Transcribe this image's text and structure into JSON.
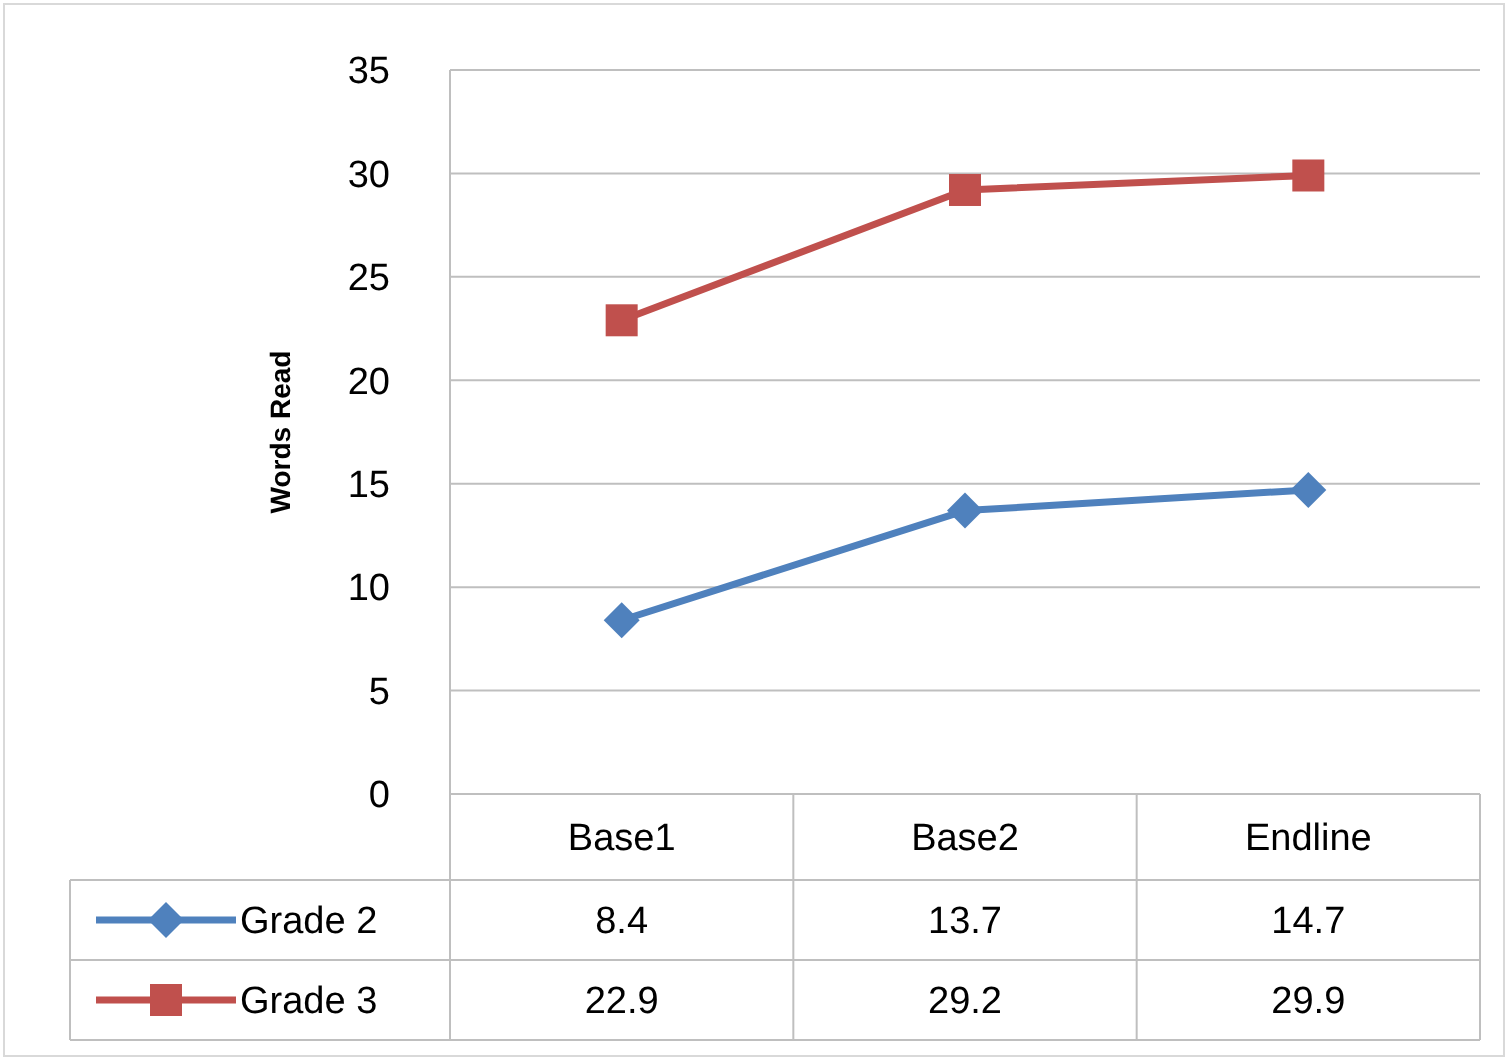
{
  "chart_data": {
    "type": "line",
    "ylabel": "Words Read",
    "categories": [
      "Base1",
      "Base2",
      "Endline"
    ],
    "series": [
      {
        "name": "Grade 2",
        "color": "#4f81bd",
        "values": [
          8.4,
          13.7,
          14.7
        ],
        "marker": "diamond"
      },
      {
        "name": "Grade 3",
        "color": "#c0504d",
        "values": [
          22.9,
          29.2,
          29.9
        ],
        "marker": "square"
      }
    ],
    "ylim": [
      0,
      35
    ],
    "yticks": [
      0,
      5,
      10,
      15,
      20,
      25,
      30,
      35
    ],
    "grid": "y",
    "data_labels": true,
    "legend": "bottom left"
  }
}
